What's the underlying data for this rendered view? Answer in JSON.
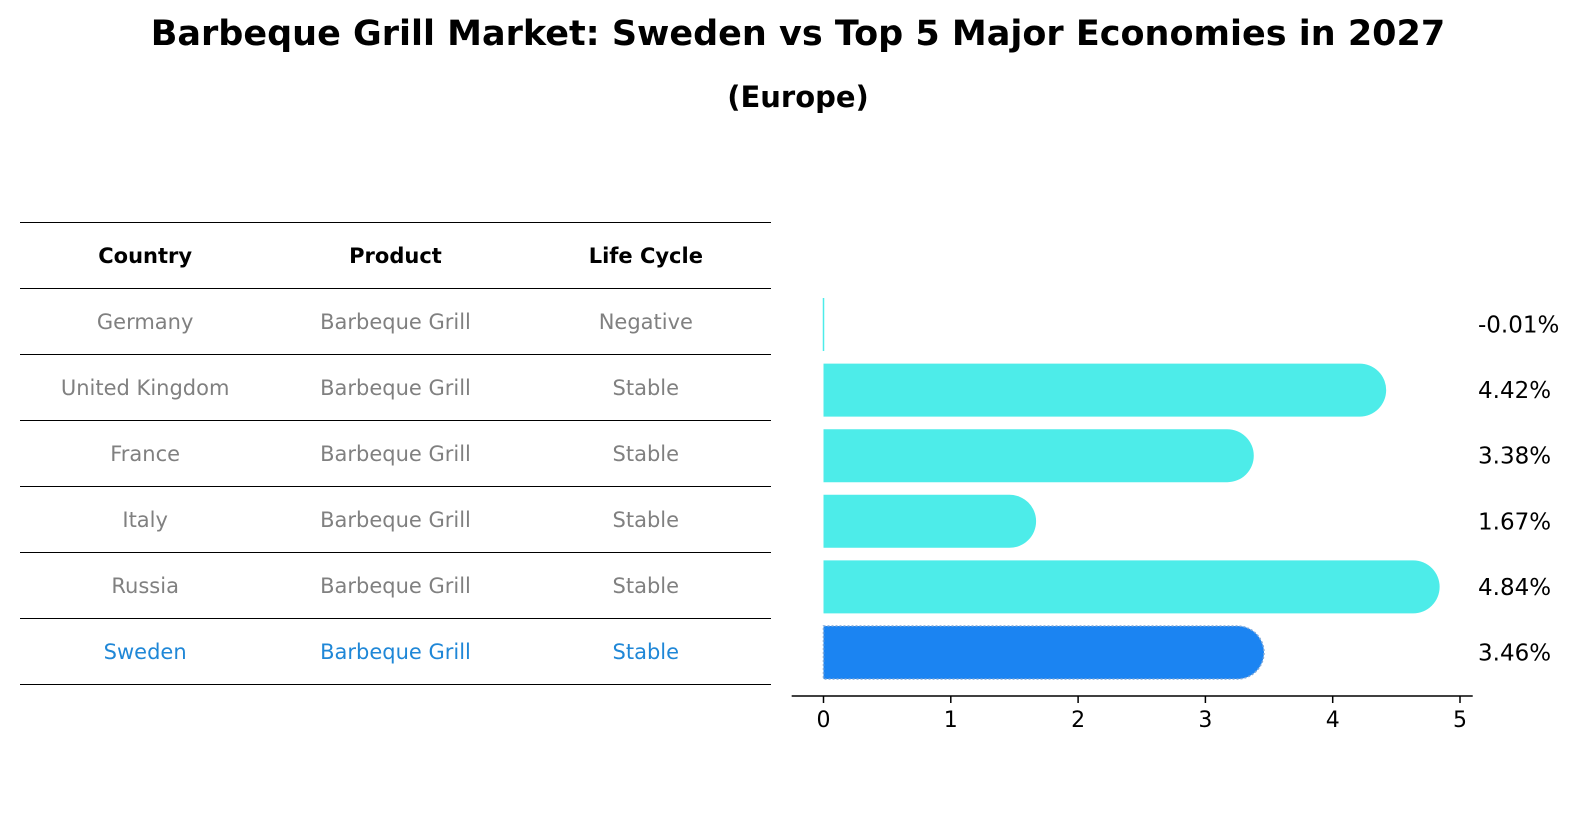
{
  "title": "Barbeque Grill Market: Sweden vs Top 5 Major Economies in 2027",
  "subtitle": "(Europe)",
  "table": {
    "headers": [
      "Country",
      "Product",
      "Life Cycle"
    ],
    "rows": [
      [
        "Germany",
        "Barbeque Grill",
        "Negative"
      ],
      [
        "United Kingdom",
        "Barbeque Grill",
        "Stable"
      ],
      [
        "France",
        "Barbeque Grill",
        "Stable"
      ],
      [
        "Italy",
        "Barbeque Grill",
        "Stable"
      ],
      [
        "Russia",
        "Barbeque Grill",
        "Stable"
      ],
      [
        "Sweden",
        "Barbeque Grill",
        "Stable"
      ]
    ],
    "highlight_row": 5
  },
  "colors": {
    "bar": "#4dece9",
    "highlight_bar": "#1b84f2",
    "text_muted": "#808080",
    "text_highlight": "#1f87d7"
  },
  "chart_data": {
    "type": "bar",
    "orientation": "horizontal",
    "categories": [
      "Germany",
      "United Kingdom",
      "France",
      "Italy",
      "Russia",
      "Sweden"
    ],
    "values": [
      -0.01,
      4.42,
      3.38,
      1.67,
      4.84,
      3.46
    ],
    "value_labels": [
      "-0.01%",
      "4.42%",
      "3.38%",
      "1.67%",
      "4.84%",
      "3.46%"
    ],
    "highlight_category": "Sweden",
    "xlim": [
      -0.25,
      5.1
    ],
    "xticks": [
      0,
      1,
      2,
      3,
      4,
      5
    ],
    "xlabel": "",
    "ylabel": "",
    "grid": false
  }
}
